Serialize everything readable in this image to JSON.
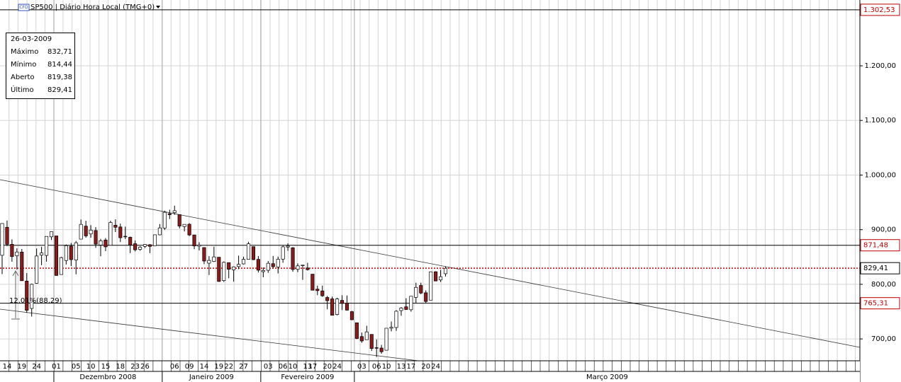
{
  "chart_data": {
    "type": "candlestick",
    "title": "SP500 | Diário Hora Local (TMG+0)",
    "icon_label": "CFD",
    "categories": [
      null,
      "14",
      null,
      null,
      "19",
      null,
      null,
      "24",
      null,
      null,
      null,
      "01",
      null,
      null,
      null,
      "05",
      null,
      null,
      "10",
      null,
      null,
      "15",
      null,
      null,
      "18",
      null,
      null,
      "23",
      null,
      "26",
      null,
      null,
      null,
      null,
      null,
      "06",
      null,
      null,
      "09",
      null,
      null,
      "14",
      null,
      null,
      "19",
      null,
      "22",
      null,
      null,
      "27",
      null,
      null,
      null,
      null,
      "03",
      null,
      null,
      "06",
      null,
      "10",
      null,
      null,
      "13",
      "17",
      null,
      null,
      "20",
      null,
      "24",
      null,
      null,
      null,
      null,
      "03",
      null,
      null,
      "06",
      null,
      "10",
      null,
      null,
      "13",
      null,
      "17",
      null,
      null,
      "20",
      null,
      "24",
      null,
      null
    ],
    "months": [
      {
        "label": "Dezembro 2008",
        "first": 11
      },
      {
        "label": "Janeiro 2009",
        "first": 33
      },
      {
        "label": "Fevereiro 2009",
        "first": 53
      },
      {
        "label": "Março 2009",
        "first": 72
      }
    ],
    "open": [
      853.1,
      904.4,
      873.2,
      852.3,
      859.0,
      805.9,
      755.8,
      802.0,
      853.4,
      852.9,
      886.9,
      888.6,
      817.9,
      843.6,
      869.8,
      844.4,
      882.7,
      906.5,
      892.2,
      898.4,
      871.8,
      881.1,
      871.5,
      908.2,
      905.0,
      886.9,
      886.1,
      874.3,
      863.9,
      869.5,
      872.4,
      870.6,
      890.6,
      902.99,
      929.2,
      931.2,
      927.5,
      905.7,
      909.9,
      890.4,
      869.8,
      867.3,
      838.7,
      841.8,
      849.6,
      806.8,
      839.7,
      826.5,
      832.5,
      837.4,
      845.7,
      868.9,
      845.7,
      823.1,
      825.7,
      837.8,
      831.8,
      846.1,
      868.2,
      866.9,
      827.4,
      834.0,
      829.9,
      818.6,
      791.1,
      787.9,
      775.9,
      773.3,
      744.7,
      770.6,
      765.8,
      749.9,
      729.6,
      704.4,
      698.6,
      708.3,
      684.0,
      683.3,
      679.3,
      719.6,
      720.9,
      751.9,
      758.8,
      753.5,
      776.0,
      797.9,
      784.5,
      771.0,
      823.0,
      808.0,
      819.38
    ],
    "high": [
      911.9,
      916.8,
      882.3,
      865.9,
      864.6,
      820.5,
      801.2,
      865.6,
      868.9,
      887.7,
      896.3,
      888.6,
      850.5,
      873.1,
      875.6,
      879.4,
      918.6,
      916.3,
      908.3,
      904.6,
      883.2,
      884.6,
      916.4,
      918.9,
      911.0,
      905.5,
      887.4,
      880.4,
      869.8,
      873.7,
      873.7,
      891.1,
      910.3,
      934.7,
      936.6,
      943.9,
      927.5,
      910.0,
      911.9,
      890.4,
      877.0,
      867.3,
      851.6,
      868.9,
      849.6,
      841.7,
      839.7,
      832.9,
      852.5,
      850.5,
      877.9,
      868.9,
      851.7,
      830.8,
      842.6,
      851.9,
      850.6,
      870.8,
      875.0,
      868.1,
      838.2,
      835.5,
      839.4,
      818.6,
      797.6,
      797.6,
      778.7,
      777.5,
      775.5,
      780.1,
      779.4,
      751.3,
      729.6,
      711.7,
      724.1,
      708.3,
      699.1,
      689.1,
      719.6,
      731.9,
      752.6,
      758.3,
      774.5,
      778.1,
      803.0,
      803.0,
      788.9,
      823.4,
      823.9,
      826.4,
      832.71
    ],
    "low": [
      818.7,
      869.9,
      841.3,
      826.8,
      806.2,
      747.8,
      741.0,
      801.2,
      834.9,
      841.4,
      881.2,
      815.7,
      817.9,
      836.3,
      833.6,
      818.4,
      882.7,
      885.4,
      885.2,
      866.8,
      851.4,
      860.7,
      871.5,
      895.7,
      877.4,
      883.0,
      857.1,
      860.1,
      861.4,
      866.5,
      857.1,
      870.6,
      889.6,
      899.4,
      919.5,
      927.3,
      902.4,
      896.8,
      888.3,
      864.3,
      862.0,
      836.9,
      817.0,
      840.7,
      804.5,
      804.3,
      811.1,
      804.9,
      827.7,
      836.3,
      845.7,
      844.2,
      821.7,
      812.9,
      821.0,
      829.2,
      819.9,
      839.4,
      861.3,
      822.99,
      822.3,
      808.1,
      825.2,
      789.1,
      780.1,
      777.0,
      754.3,
      743.3,
      743.0,
      752.9,
      751.8,
      734.5,
      699.7,
      692.9,
      698.6,
      677.9,
      666.8,
      672.9,
      679.3,
      713.9,
      714.8,
      742.5,
      753.4,
      749.9,
      765.6,
      781.8,
      766.2,
      771.0,
      805.5,
      804.3,
      814.44
    ],
    "close": [
      911.29,
      873.29,
      850.75,
      859.12,
      806.58,
      752.44,
      800.03,
      851.81,
      857.39,
      887.68,
      896.24,
      816.21,
      848.81,
      870.74,
      845.22,
      876.07,
      909.7,
      888.67,
      899.24,
      873.59,
      879.73,
      868.57,
      913.18,
      904.42,
      885.28,
      887.88,
      871.63,
      863.16,
      868.15,
      872.8,
      869.42,
      890.64,
      903.25,
      931.8,
      927.45,
      934.7,
      906.65,
      909.73,
      890.35,
      870.26,
      871.79,
      842.62,
      843.74,
      850.12,
      805.22,
      840.24,
      827.5,
      831.95,
      836.57,
      845.71,
      874.09,
      845.14,
      825.88,
      825.44,
      838.51,
      832.23,
      845.85,
      868.6,
      869.89,
      827.16,
      833.74,
      835.19,
      826.84,
      789.17,
      788.42,
      778.94,
      770.05,
      743.33,
      773.14,
      764.9,
      752.83,
      735.09,
      700.82,
      696.33,
      712.87,
      682.55,
      683.38,
      676.53,
      719.6,
      721.36,
      750.74,
      756.55,
      753.89,
      778.12,
      794.35,
      784.04,
      768.54,
      822.92,
      806.12,
      813.88,
      829.41
    ],
    "up_color": "#ffffff",
    "down_color": "#8b1a1a",
    "ylim": [
      660,
      1314
    ],
    "yticks": [
      {
        "value": 700,
        "label": "700,00"
      },
      {
        "value": 800,
        "label": "800,00"
      },
      {
        "value": 900,
        "label": "900,00"
      },
      {
        "value": 1000,
        "label": "1.000,00"
      },
      {
        "value": 1100,
        "label": "1.100,00"
      },
      {
        "value": 1200,
        "label": "1.200,00"
      }
    ],
    "grid": true,
    "levels": [
      {
        "value": 1302.53,
        "label": "1.302,53",
        "color": "#c00000",
        "line_color": "#000000",
        "dotted": false
      },
      {
        "value": 871.48,
        "label": "871,48",
        "color": "#c00000",
        "line_color": "#000000",
        "dotted": false
      },
      {
        "value": 829.41,
        "label": "829,41",
        "color": "#000000",
        "line_color": "#c00000",
        "dotted": true
      },
      {
        "value": 765.31,
        "label": "765,31",
        "color": "#c00000",
        "line_color": "#000000",
        "dotted": false
      }
    ],
    "annotation": "12,01%(88,29)",
    "info_box": {
      "date": "26-03-2009",
      "rows": [
        {
          "label": "Máximo",
          "value": "832,71"
        },
        {
          "label": "Mínimo",
          "value": "814,44"
        },
        {
          "label": "Aberto",
          "value": "819,38"
        },
        {
          "label": "Último",
          "value": "829,41"
        }
      ]
    }
  }
}
